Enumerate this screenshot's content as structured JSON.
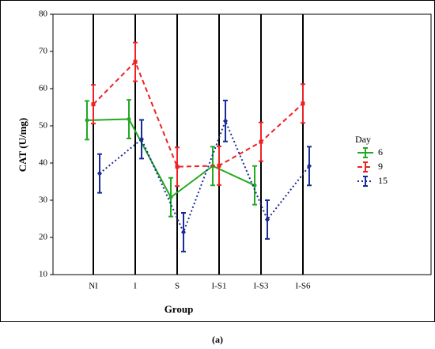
{
  "chart_data": {
    "type": "line",
    "x_label": "Group",
    "y_label": "CAT (U/mg)",
    "legend_title": "Day",
    "caption": "(a)",
    "categories": [
      "NI",
      "I",
      "S",
      "I-S1",
      "I-S3",
      "I-S6"
    ],
    "series": [
      {
        "name": "6",
        "color": "#22aa22",
        "linestyle": "solid",
        "marker": "circle",
        "values": [
          51.5,
          51.8,
          30.8,
          39.2,
          34.0,
          null
        ],
        "errors": [
          5.2,
          5.2,
          5.2,
          5.2,
          5.2,
          null
        ]
      },
      {
        "name": "9",
        "color": "#ee2222",
        "linestyle": "dashed",
        "marker": "square",
        "values": [
          55.8,
          67.2,
          39.0,
          39.3,
          45.7,
          56.0
        ],
        "errors": [
          5.2,
          5.2,
          5.2,
          5.2,
          5.2,
          5.2
        ]
      },
      {
        "name": "15",
        "color": "#1a2a99",
        "linestyle": "dotted",
        "marker": "diamond",
        "values": [
          37.2,
          46.4,
          21.4,
          51.3,
          24.8,
          39.2
        ],
        "errors": [
          5.2,
          5.2,
          5.2,
          5.5,
          5.2,
          5.2
        ]
      }
    ],
    "ylim": [
      10,
      80
    ],
    "yticks": [
      10,
      20,
      30,
      40,
      50,
      60,
      70,
      80
    ],
    "legend": "right"
  }
}
